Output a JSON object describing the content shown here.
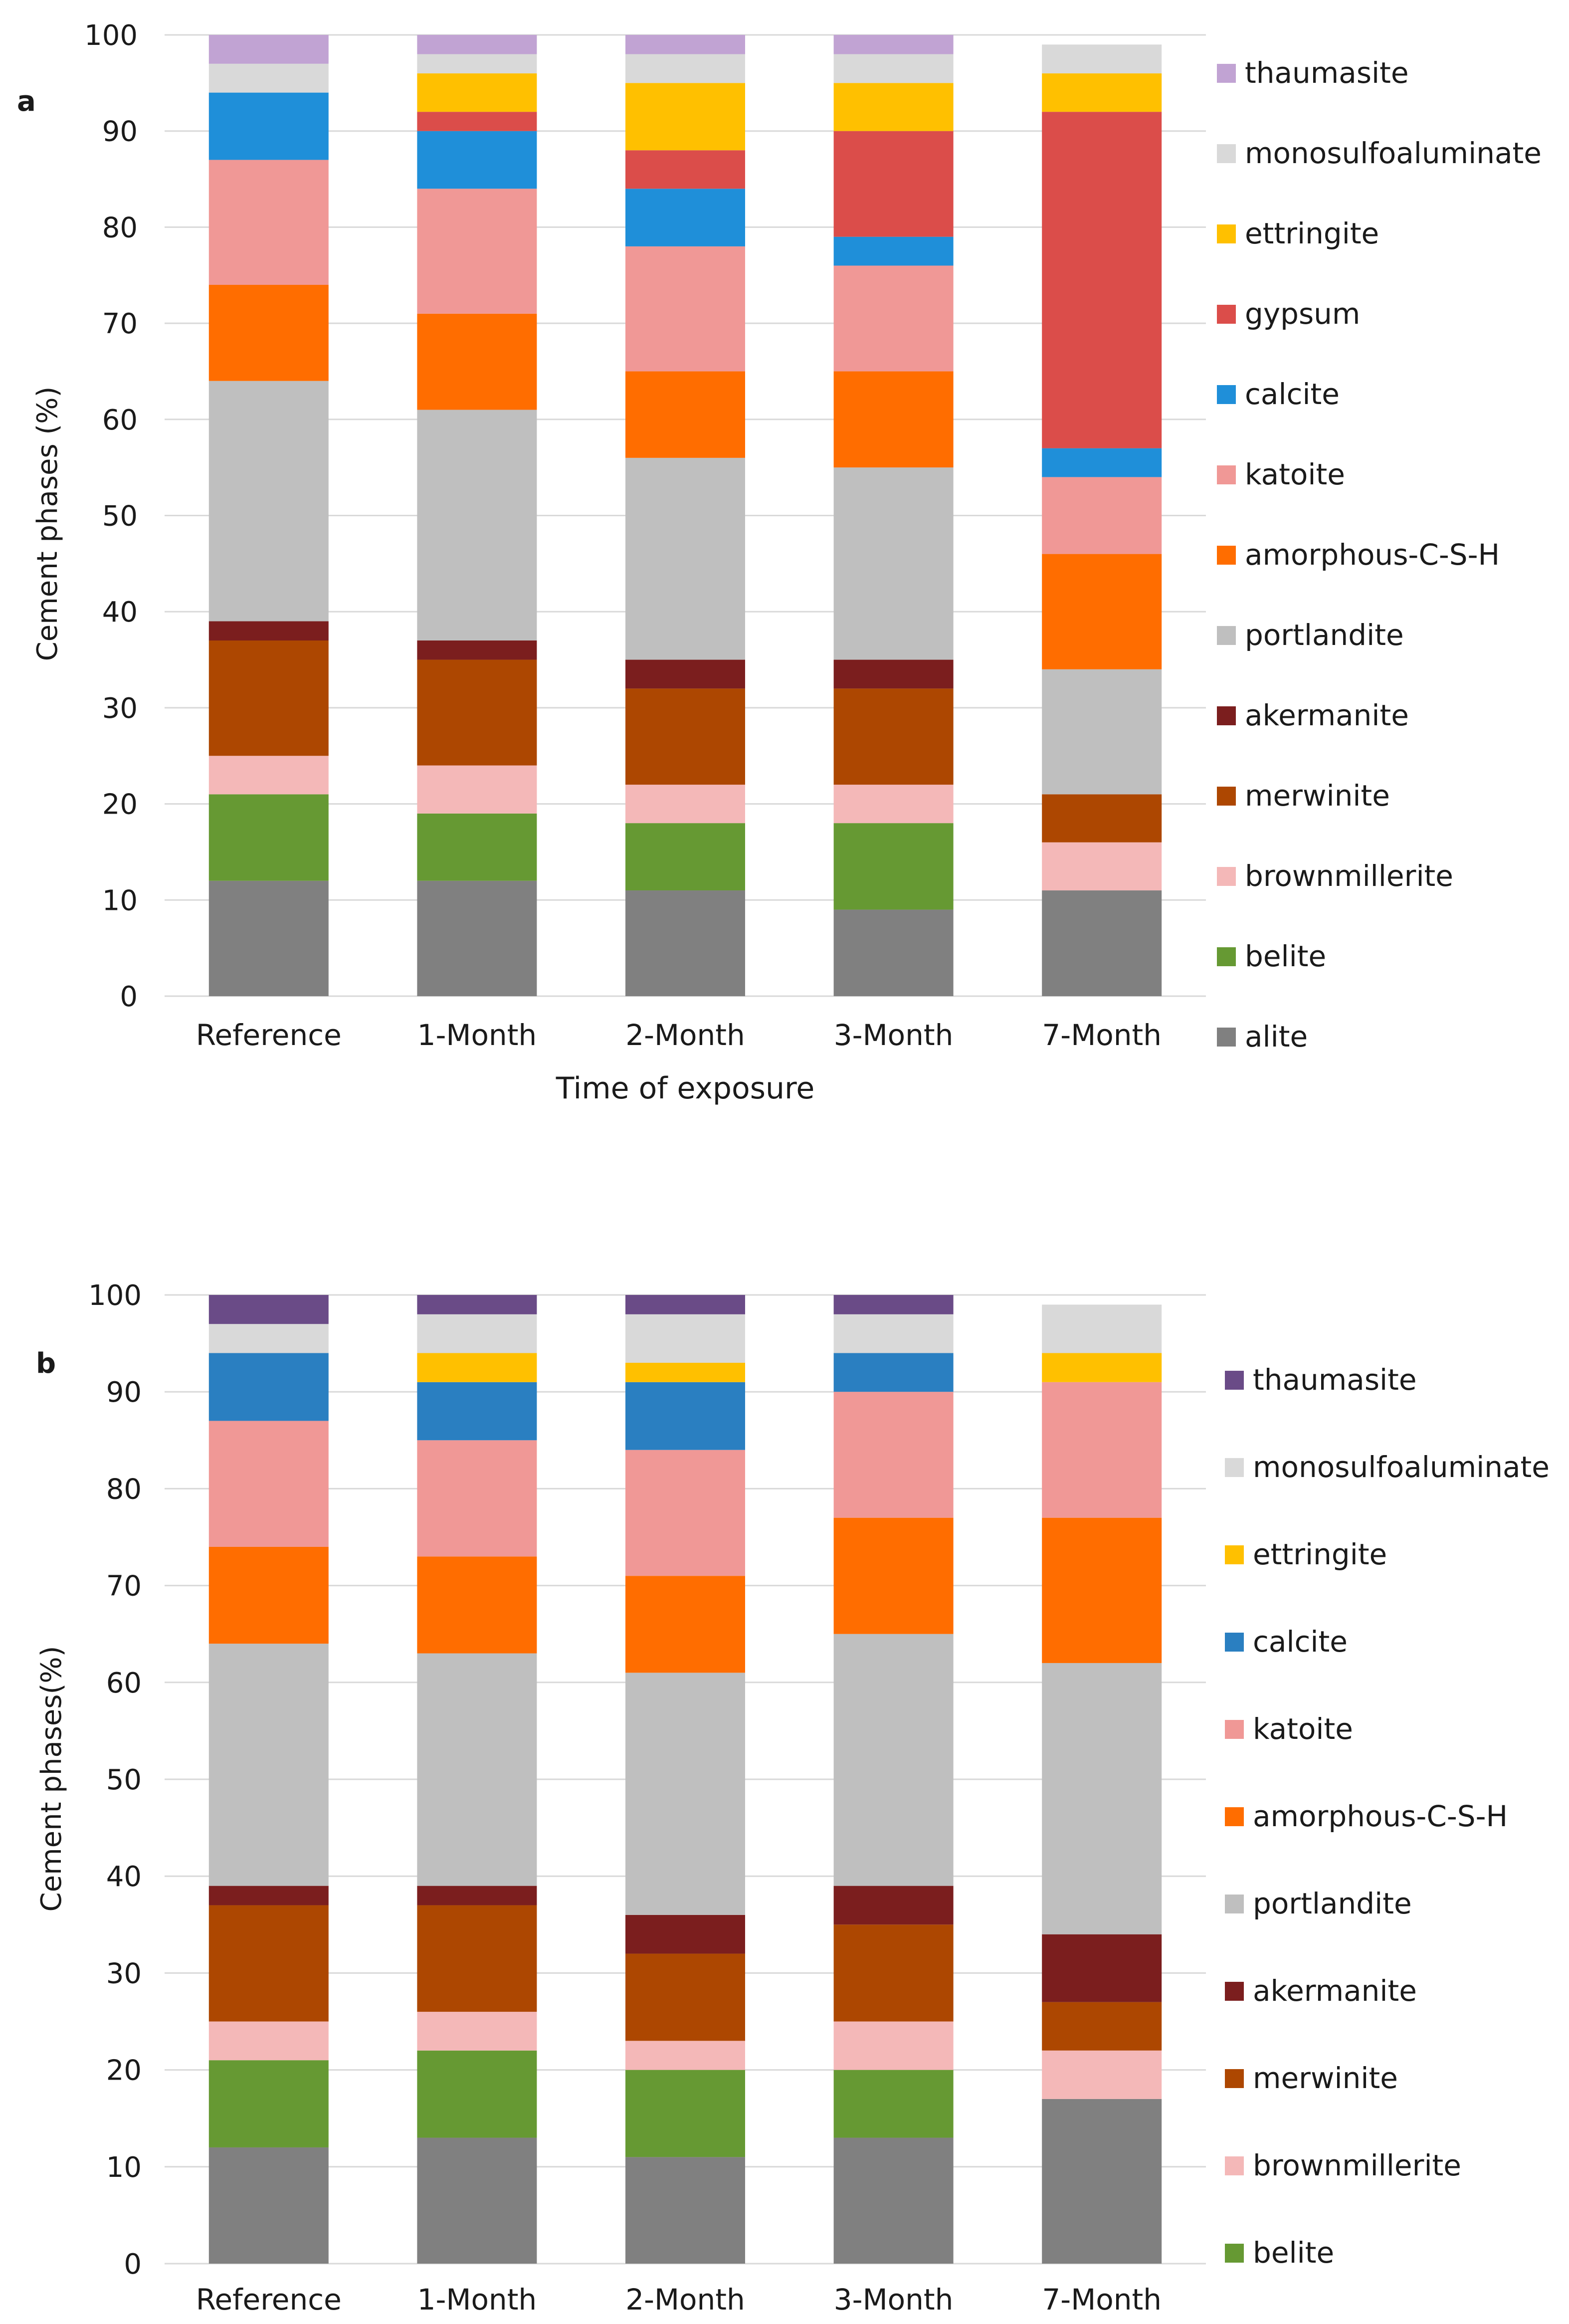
{
  "chart_data": [
    {
      "type": "bar",
      "stacked": true,
      "panel_label": "a",
      "title": "",
      "xlabel": "Time of exposure",
      "ylabel": "Cement phases (%)",
      "ylim": [
        0,
        100
      ],
      "yticks": [
        "0",
        "10",
        "20",
        "30",
        "40",
        "50",
        "60",
        "70",
        "80",
        "90",
        "100"
      ],
      "grid": "horizontal",
      "legend_position": "right",
      "categories": [
        "Reference",
        "1-Month",
        "2-Month",
        "3-Month",
        "7-Month"
      ],
      "series": [
        {
          "name": "alite",
          "color": "#808080",
          "values": [
            12,
            12,
            11,
            9,
            11
          ]
        },
        {
          "name": "belite",
          "color": "#669933",
          "values": [
            9,
            7,
            7,
            9,
            0
          ]
        },
        {
          "name": "brownmillerite",
          "color": "#F4B8B8",
          "values": [
            4,
            5,
            4,
            4,
            5
          ]
        },
        {
          "name": "merwinite",
          "color": "#AD4701",
          "values": [
            12,
            11,
            10,
            10,
            5
          ]
        },
        {
          "name": "akermanite",
          "color": "#7B1E1E",
          "values": [
            2,
            2,
            3,
            3,
            0
          ]
        },
        {
          "name": "portlandite",
          "color": "#BFBFBF",
          "values": [
            25,
            24,
            21,
            20,
            13
          ]
        },
        {
          "name": "amorphous-C-S-H",
          "color": "#FF6D00",
          "values": [
            10,
            10,
            9,
            10,
            12
          ]
        },
        {
          "name": "katoite",
          "color": "#F09896",
          "values": [
            13,
            13,
            13,
            11,
            8
          ]
        },
        {
          "name": "calcite",
          "color": "#1F8FD9",
          "values": [
            7,
            6,
            6,
            3,
            3
          ]
        },
        {
          "name": "gypsum",
          "color": "#DB4D4A",
          "values": [
            0,
            2,
            4,
            11,
            35
          ]
        },
        {
          "name": "ettringite",
          "color": "#FFC000",
          "values": [
            0,
            4,
            7,
            5,
            4
          ]
        },
        {
          "name": "monosulfoaluminate",
          "color": "#D9D9D9",
          "values": [
            3,
            2,
            3,
            3,
            3
          ]
        },
        {
          "name": "thaumasite",
          "color": "#C1A3D3",
          "values": [
            3,
            2,
            2,
            2,
            0
          ]
        }
      ]
    },
    {
      "type": "bar",
      "stacked": true,
      "panel_label": "b",
      "title": "",
      "xlabel": "",
      "ylabel": "Cement phases(%)",
      "ylim": [
        0,
        100
      ],
      "yticks": [
        "0",
        "10",
        "20",
        "30",
        "40",
        "50",
        "60",
        "70",
        "80",
        "90",
        "100"
      ],
      "grid": "horizontal",
      "legend_position": "right",
      "categories": [
        "Reference",
        "1-Month",
        "2-Month",
        "3-Month",
        "7-Month"
      ],
      "series": [
        {
          "name": "alite",
          "color": "#808080",
          "values": [
            12,
            13,
            11,
            13,
            17
          ],
          "in_legend": false
        },
        {
          "name": "belite",
          "color": "#669933",
          "values": [
            9,
            9,
            9,
            7,
            0
          ]
        },
        {
          "name": "brownmillerite",
          "color": "#F4B8B8",
          "values": [
            4,
            4,
            3,
            5,
            5
          ]
        },
        {
          "name": "merwinite",
          "color": "#AD4701",
          "values": [
            12,
            11,
            9,
            10,
            5
          ]
        },
        {
          "name": "akermanite",
          "color": "#7B1E1E",
          "values": [
            2,
            2,
            4,
            4,
            7
          ]
        },
        {
          "name": "portlandite",
          "color": "#BFBFBF",
          "values": [
            25,
            24,
            25,
            26,
            28
          ]
        },
        {
          "name": "amorphous-C-S-H",
          "color": "#FF6D00",
          "values": [
            10,
            10,
            10,
            12,
            15
          ]
        },
        {
          "name": "katoite",
          "color": "#F09896",
          "values": [
            13,
            12,
            13,
            13,
            14
          ]
        },
        {
          "name": "calcite",
          "color": "#2A7FC1",
          "values": [
            7,
            6,
            7,
            4,
            0
          ]
        },
        {
          "name": "ettringite",
          "color": "#FFC000",
          "values": [
            0,
            3,
            2,
            0,
            3
          ]
        },
        {
          "name": "monosulfoaluminate",
          "color": "#D9D9D9",
          "values": [
            3,
            4,
            5,
            4,
            5
          ]
        },
        {
          "name": "thaumasite",
          "color": "#6A4B87",
          "values": [
            3,
            2,
            2,
            2,
            0
          ]
        }
      ]
    }
  ]
}
